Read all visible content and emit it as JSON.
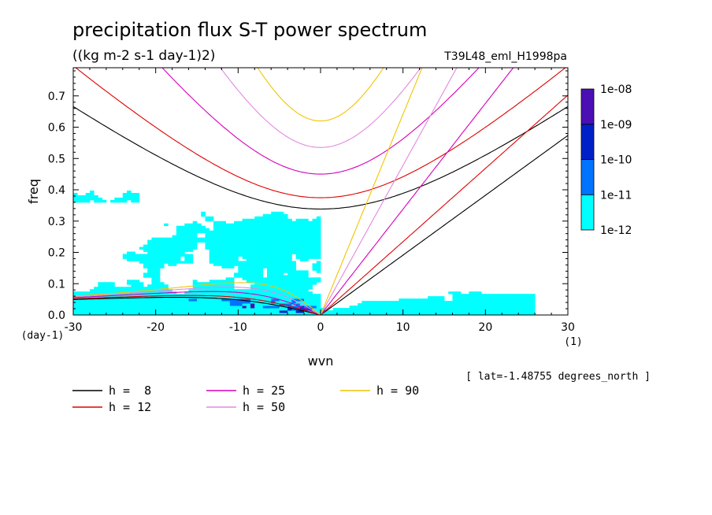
{
  "chart_data": {
    "type": "heatmap",
    "title": "precipitation flux S-T power spectrum",
    "subtitle": "((kg m-2 s-1 day-1)2)",
    "run_label": "T39L48_eml_H1998pa",
    "xlabel": "wvn",
    "xunit": "(1)",
    "ylabel": "freq",
    "yunit": "(day-1)",
    "xlim": [
      -30,
      30
    ],
    "ylim": [
      0,
      0.79
    ],
    "x_ticks": [
      -30,
      -20,
      -10,
      0,
      10,
      20,
      30
    ],
    "x_tick_labels": [
      "-30",
      "-20",
      "-10",
      "0",
      "10",
      "20",
      "30"
    ],
    "y_ticks": [
      0.0,
      0.1,
      0.2,
      0.3,
      0.4,
      0.5,
      0.6,
      0.7
    ],
    "y_tick_labels": [
      "0.0",
      "0.1",
      "0.2",
      "0.3",
      "0.4",
      "0.5",
      "0.6",
      "0.7"
    ],
    "annotation": "[ lat=-1.48755 degrees_north ]",
    "colorbar": {
      "labels": [
        "1e-08",
        "1e-09",
        "1e-10",
        "1e-11",
        "1e-12"
      ],
      "levels": [
        1e-12,
        1e-11,
        1e-10,
        1e-09,
        1e-08
      ],
      "colors": [
        "#00ffff",
        "#0073ff",
        "#0021c8",
        "#4b0fb4"
      ]
    },
    "dispersion_curves": [
      {
        "label": "h =  8",
        "h": 8,
        "color": "#000000"
      },
      {
        "label": "h = 12",
        "h": 12,
        "color": "#e00000"
      },
      {
        "label": "h = 25",
        "h": 25,
        "color": "#d600b8"
      },
      {
        "label": "h = 50",
        "h": 50,
        "color": "#e28ae0"
      },
      {
        "label": "h = 90",
        "h": 90,
        "color": "#f2c400"
      }
    ]
  }
}
